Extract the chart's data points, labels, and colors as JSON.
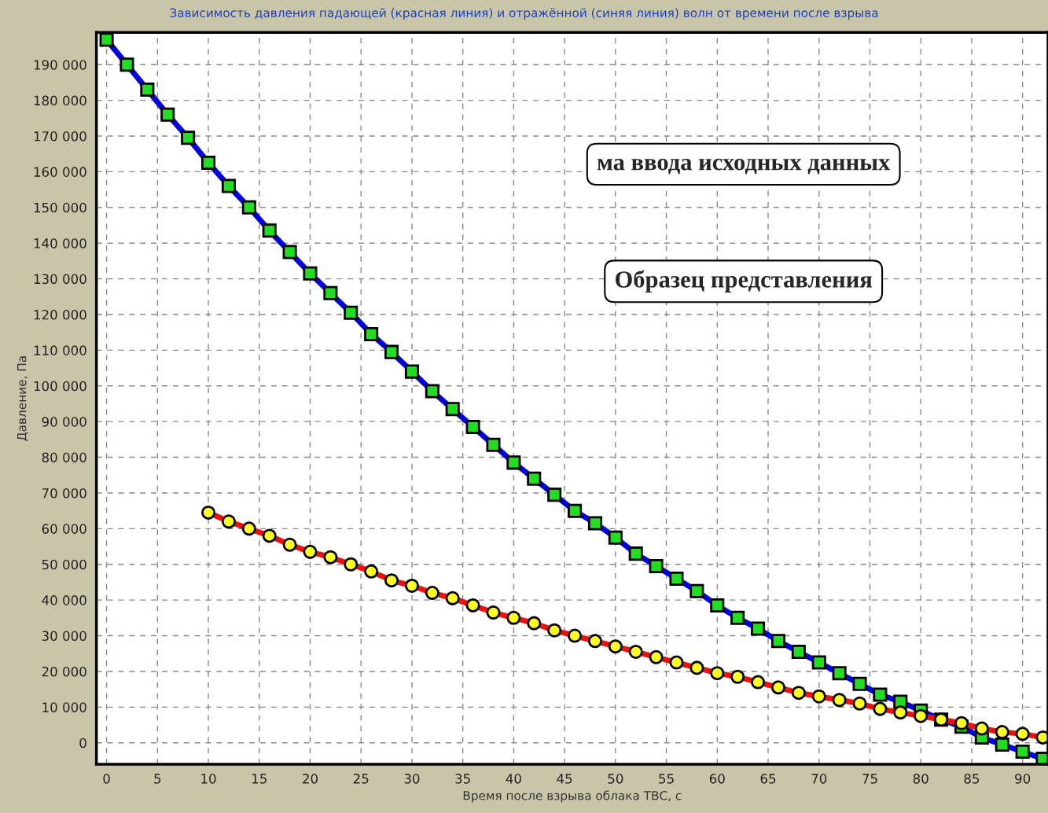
{
  "chart_data": {
    "type": "line",
    "title": "Зависимость давления падающей (красная линия) и отражённой (синяя линия) волн от времени после взрыва",
    "xlabel": "Время после взрыва облака ТВС, с",
    "ylabel": "Давление, Па",
    "x": [
      0,
      2,
      4,
      6,
      8,
      10,
      12,
      14,
      16,
      18,
      20,
      22,
      24,
      26,
      28,
      30,
      32,
      34,
      36,
      38,
      40,
      42,
      44,
      46,
      48,
      50,
      52,
      54,
      56,
      58,
      60,
      62,
      64,
      66,
      68,
      70,
      72,
      74,
      76,
      78,
      80,
      82,
      84,
      86,
      88,
      90,
      92
    ],
    "series": [
      {
        "color": "#0000dd",
        "marker": "square",
        "values": [
          197000,
          190000,
          183000,
          176000,
          169500,
          162500,
          156000,
          150000,
          143500,
          137500,
          131500,
          126000,
          120500,
          114500,
          109500,
          104000,
          98500,
          93500,
          88500,
          83500,
          78500,
          74000,
          69500,
          65000,
          61500,
          57500,
          53000,
          49500,
          46000,
          42500,
          38500,
          35000,
          32000,
          28500,
          25500,
          22500,
          19500,
          16500,
          13500,
          11500,
          9000,
          6500,
          4500,
          1500,
          -500,
          -2500,
          -4500
        ]
      },
      {
        "color": "#ee1111",
        "marker": "circle",
        "values": [
          null,
          null,
          null,
          null,
          null,
          64500,
          62000,
          60000,
          58000,
          55500,
          53500,
          52000,
          50000,
          48000,
          45500,
          44000,
          42000,
          40500,
          38500,
          36500,
          35000,
          33500,
          31500,
          30000,
          28500,
          27000,
          25500,
          24000,
          22500,
          21000,
          19500,
          18500,
          17000,
          15500,
          14000,
          13000,
          12000,
          11000,
          9500,
          8500,
          7500,
          6500,
          5500,
          4000,
          3000,
          2500,
          1500
        ]
      }
    ],
    "xlim": [
      -1,
      92.5
    ],
    "xticks": [
      0,
      5,
      10,
      15,
      20,
      25,
      30,
      35,
      40,
      45,
      50,
      55,
      60,
      65,
      70,
      75,
      80,
      85,
      90
    ],
    "ylim": [
      -6000,
      199000
    ],
    "yticks": [
      {
        "value": 0,
        "label": "0"
      },
      {
        "value": 10000,
        "label": "10 000"
      },
      {
        "value": 20000,
        "label": "20 000"
      },
      {
        "value": 30000,
        "label": "30 000"
      },
      {
        "value": 40000,
        "label": "40 000"
      },
      {
        "value": 50000,
        "label": "50 000"
      },
      {
        "value": 60000,
        "label": "60 000"
      },
      {
        "value": 70000,
        "label": "70 000"
      },
      {
        "value": 80000,
        "label": "80 000"
      },
      {
        "value": 90000,
        "label": "90 000"
      },
      {
        "value": 100000,
        "label": "100 000"
      },
      {
        "value": 110000,
        "label": "110 000"
      },
      {
        "value": 120000,
        "label": "120 000"
      },
      {
        "value": 130000,
        "label": "130 000"
      },
      {
        "value": 140000,
        "label": "140 000"
      },
      {
        "value": 150000,
        "label": "150 000"
      },
      {
        "value": 160000,
        "label": "160 000"
      },
      {
        "value": 170000,
        "label": "170 000"
      },
      {
        "value": 180000,
        "label": "180 000"
      },
      {
        "value": 190000,
        "label": "190 000"
      }
    ],
    "grid": true,
    "line_style": "solid",
    "annotations": [
      "ма ввода исходных данных",
      "Образец представления"
    ]
  }
}
